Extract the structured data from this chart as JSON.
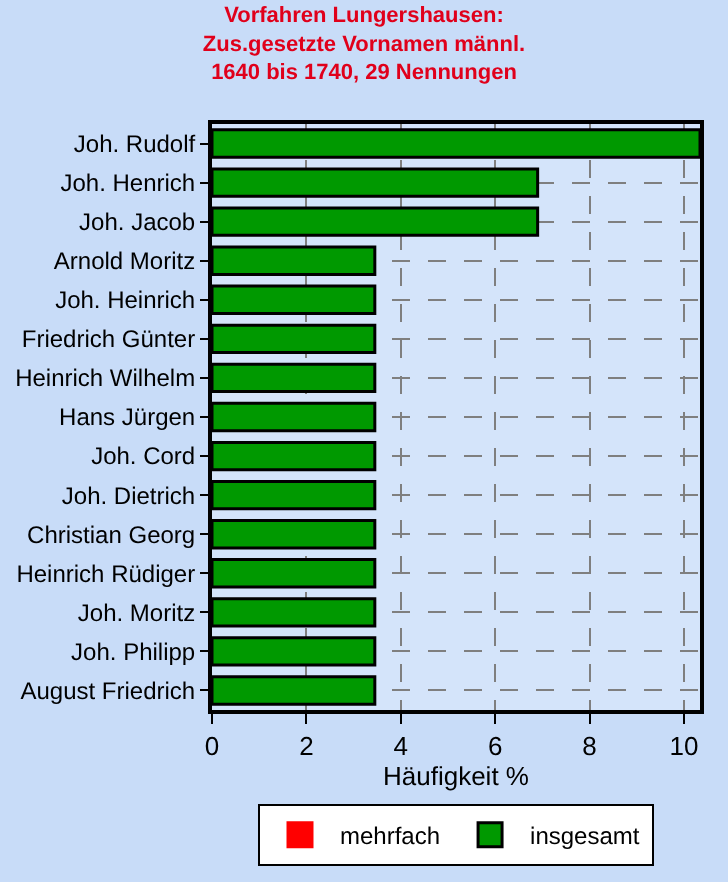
{
  "chart_data": {
    "type": "bar",
    "orientation": "horizontal",
    "title": "Vorfahren Lungershausen:\nZus.gesetzte Vornamen männl.\n1640 bis 1740, 29 Nennungen",
    "xlabel": "Häufigkeit %",
    "categories": [
      "Joh. Rudolf",
      "Joh. Henrich",
      "Joh. Jacob",
      "Arnold Moritz",
      "Joh. Heinrich",
      "Friedrich Günter",
      "Heinrich Wilhelm",
      "Hans Jürgen",
      "Joh. Cord",
      "Joh. Dietrich",
      "Christian Georg",
      "Heinrich Rüdiger",
      "Joh. Moritz",
      "Joh. Philipp",
      "August Friedrich"
    ],
    "series": [
      {
        "name": "mehrfach",
        "color": "#ff0000",
        "values": [
          0,
          0,
          0,
          0,
          0,
          0,
          0,
          0,
          0,
          0,
          0,
          0,
          0,
          0,
          0
        ]
      },
      {
        "name": "insgesamt",
        "color": "#009900",
        "values": [
          10.34,
          6.9,
          6.9,
          3.45,
          3.45,
          3.45,
          3.45,
          3.45,
          3.45,
          3.45,
          3.45,
          3.45,
          3.45,
          3.45,
          3.45
        ]
      }
    ],
    "xlim": [
      0,
      10.34
    ],
    "xticks": [
      0,
      2,
      4,
      6,
      8,
      10
    ],
    "grid": true,
    "legend": "bottom"
  }
}
